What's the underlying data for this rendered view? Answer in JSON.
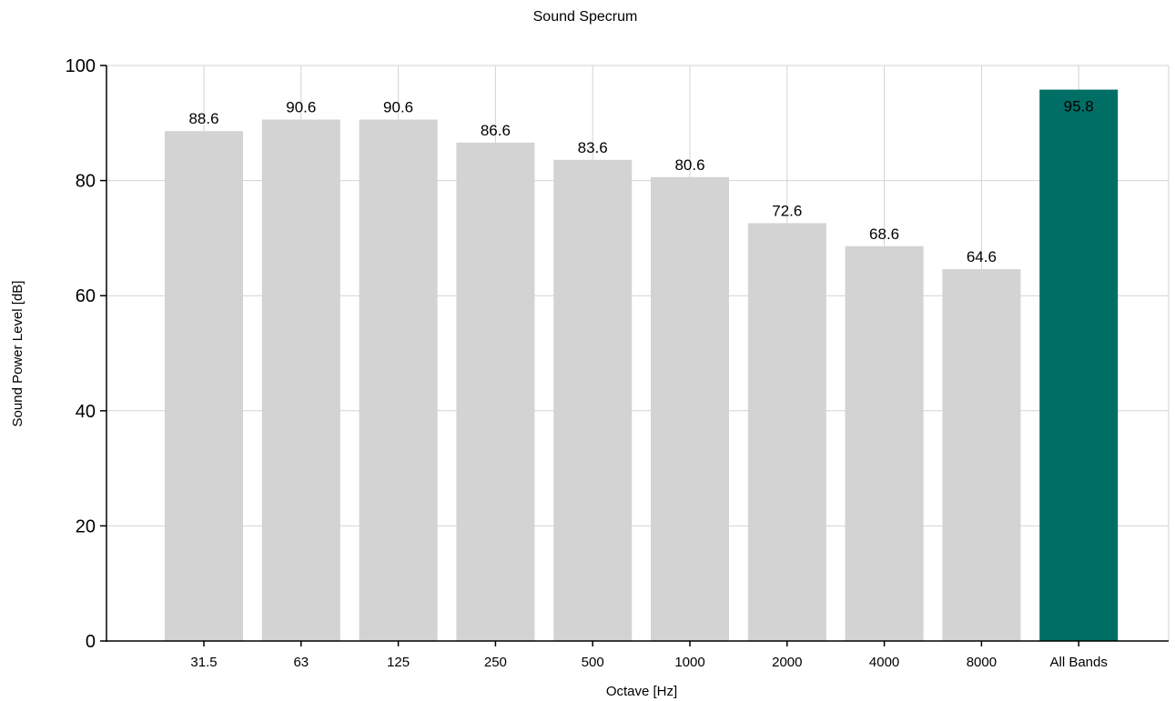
{
  "chart_data": {
    "type": "bar",
    "title": "Sound Specrum",
    "xlabel": "Octave [Hz]",
    "ylabel": "Sound Power Level [dB]",
    "categories": [
      "31.5",
      "63",
      "125",
      "250",
      "500",
      "1000",
      "2000",
      "4000",
      "8000",
      "All Bands"
    ],
    "values": [
      88.6,
      90.6,
      90.6,
      86.6,
      83.6,
      80.6,
      72.6,
      68.6,
      64.6,
      95.8
    ],
    "data_labels": [
      "88.6",
      "90.6",
      "90.6",
      "86.6",
      "83.6",
      "80.6",
      "72.6",
      "68.6",
      "64.6",
      "95.8"
    ],
    "ylim": [
      0,
      100
    ],
    "yticks": [
      0,
      20,
      40,
      60,
      80,
      100
    ],
    "grid": true,
    "legend": "none",
    "colors": {
      "bar": "#d3d3d3",
      "highlight_bar": "#006e65",
      "grid": "#d3d3d3",
      "axis": "#000000"
    },
    "highlight_index": 9
  }
}
